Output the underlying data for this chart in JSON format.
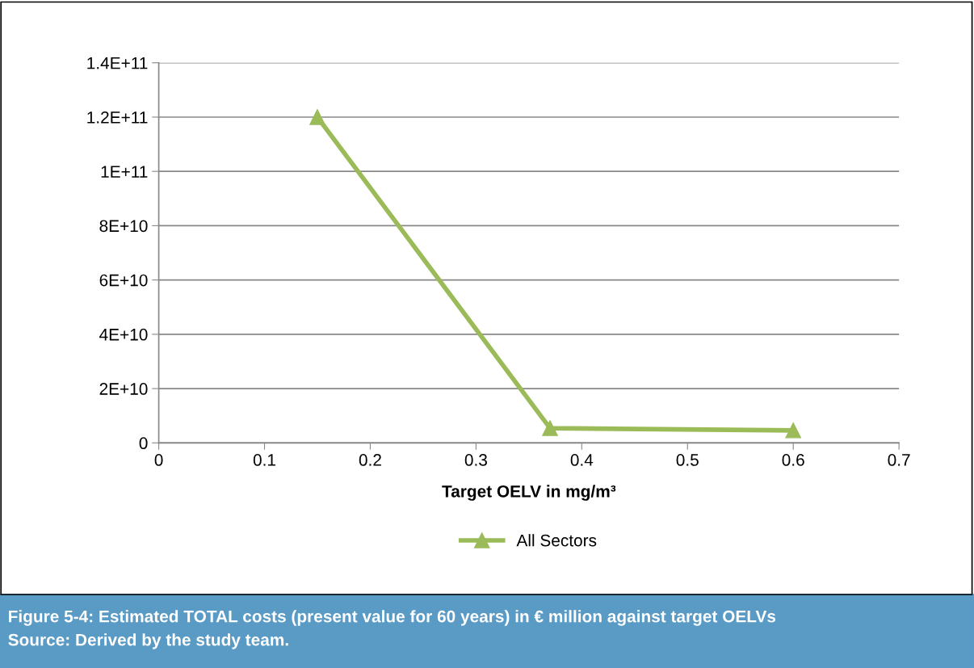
{
  "chart_data": {
    "type": "line",
    "xlabel": "Target OELV in mg/m³",
    "x": [
      0.15,
      0.37,
      0.6
    ],
    "series": [
      {
        "name": "All Sectors",
        "color": "#9bbb59",
        "values": [
          120000000000.0,
          5400000000.0,
          4600000000.0
        ]
      }
    ],
    "xlim": [
      0,
      0.7
    ],
    "xticks": [
      0,
      0.1,
      0.2,
      0.3,
      0.4,
      0.5,
      0.6,
      0.7
    ],
    "ylim": [
      0,
      140000000000.0
    ],
    "yticks": [
      0,
      {
        "value": 20000000000.0,
        "label": "2E+10"
      },
      {
        "value": 40000000000.0,
        "label": "4E+10"
      },
      {
        "value": 60000000000.0,
        "label": "6E+10"
      },
      {
        "value": 80000000000.0,
        "label": "8E+10"
      },
      {
        "value": 100000000000.0,
        "label": "1E+11"
      },
      {
        "value": 120000000000.0,
        "label": "1.2E+11"
      },
      {
        "value": 140000000000.0,
        "label": "1.4E+11"
      }
    ],
    "grid": "y",
    "legend": "bottom",
    "marker": "triangle",
    "line_style": "solid",
    "annotations": [
      "Figure 5-4: Estimated TOTAL costs (present value for 60 years) in € million against target OELVs",
      "Source: Derived by the study team."
    ]
  }
}
